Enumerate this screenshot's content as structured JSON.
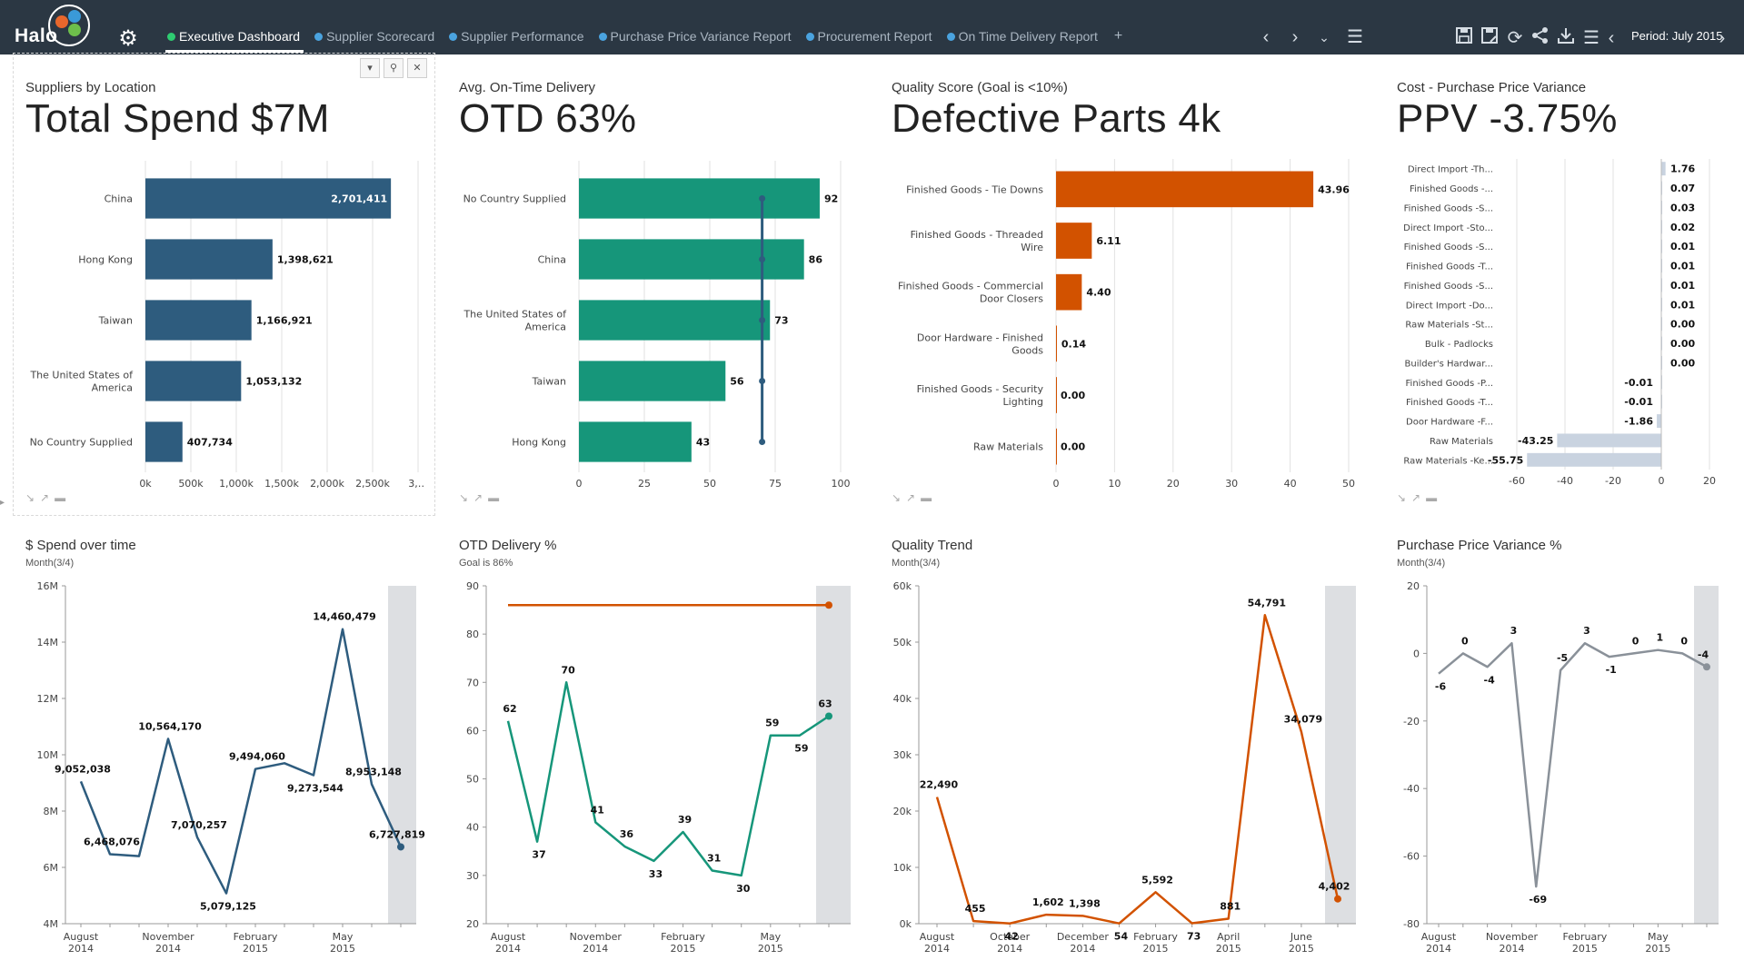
{
  "app": {
    "logo_text": "Halo"
  },
  "tabs": [
    {
      "label": "Executive Dashboard",
      "active": true
    },
    {
      "label": "Supplier Scorecard",
      "active": false
    },
    {
      "label": "Supplier Performance",
      "active": false
    },
    {
      "label": "Purchase Price Variance Report",
      "active": false
    },
    {
      "label": "Procurement Report",
      "active": false
    },
    {
      "label": "On Time Delivery Report",
      "active": false
    }
  ],
  "tab_add": "+",
  "toolbar": {
    "period_label": "Period: July 2015"
  },
  "colors": {
    "blue": "#2e5c7e",
    "teal": "#16967a",
    "orange": "#d25200",
    "gray": "#8a9199",
    "ppv_bar": "#c9d3e0"
  },
  "kpi": {
    "spend": {
      "subtitle": "Suppliers by Location",
      "value": "Total Spend $7M"
    },
    "otd": {
      "subtitle": "Avg. On-Time Delivery",
      "value": "OTD 63%"
    },
    "quality": {
      "subtitle": "Quality Score (Goal is <10%)",
      "value": "Defective Parts 4k"
    },
    "ppv": {
      "subtitle": "Cost - Purchase Price Variance",
      "value": "PPV -3.75%"
    }
  },
  "line_titles": {
    "spend": {
      "title": "$ Spend over time",
      "sub": "Month(3/4)"
    },
    "otd": {
      "title": "OTD Delivery %",
      "sub": "Goal is 86%"
    },
    "quality": {
      "title": "Quality Trend",
      "sub": "Month(3/4)"
    },
    "ppv": {
      "title": "Purchase Price Variance %",
      "sub": "Month(3/4)"
    }
  },
  "chart_data": [
    {
      "id": "spend_bar",
      "type": "bar",
      "orientation": "horizontal",
      "categories": [
        [
          "China"
        ],
        [
          "Hong Kong"
        ],
        [
          "Taiwan"
        ],
        [
          "The United States of",
          "America"
        ],
        [
          "No Country Supplied"
        ]
      ],
      "values": [
        2701411,
        1398621,
        1166921,
        1053132,
        407734
      ],
      "labels": [
        "2,701,411",
        "1,398,621",
        "1,166,921",
        "1,053,132",
        "407,734"
      ],
      "xlim": [
        0,
        3000000
      ],
      "ticks": [
        "0k",
        "500k",
        "1,000k",
        "1,500k",
        "2,000k",
        "2,500k",
        "3,…"
      ],
      "color": "#2e5c7e"
    },
    {
      "id": "otd_bar",
      "type": "bar",
      "orientation": "horizontal",
      "categories": [
        [
          "No Country Supplied"
        ],
        [
          "China"
        ],
        [
          "The United States of",
          "America"
        ],
        [
          "Taiwan"
        ],
        [
          "Hong Kong"
        ]
      ],
      "values": [
        92,
        86,
        73,
        56,
        43
      ],
      "labels": [
        "92",
        "86",
        "73",
        "56",
        "43"
      ],
      "xlim": [
        0,
        100
      ],
      "ticks": [
        "0",
        "25",
        "50",
        "75",
        "100"
      ],
      "target": 70,
      "color": "#16967a"
    },
    {
      "id": "quality_bar",
      "type": "bar",
      "orientation": "horizontal",
      "categories": [
        [
          "Finished Goods - Tie Downs"
        ],
        [
          "Finished Goods - Threaded",
          "Wire"
        ],
        [
          "Finished Goods - Commercial",
          "Door Closers"
        ],
        [
          "Door Hardware - Finished",
          "Goods"
        ],
        [
          "Finished Goods - Security",
          "Lighting"
        ],
        [
          "Raw Materials"
        ]
      ],
      "values": [
        43.96,
        6.11,
        4.4,
        0.14,
        0.0,
        0.0
      ],
      "labels": [
        "43.96",
        "6.11",
        "4.40",
        "0.14",
        "0.00",
        "0.00"
      ],
      "xlim": [
        0,
        50
      ],
      "ticks": [
        "0",
        "10",
        "20",
        "30",
        "40",
        "50"
      ],
      "color": "#d25200"
    },
    {
      "id": "ppv_bar",
      "type": "bar",
      "orientation": "horizontal",
      "categories": [
        [
          "Direct Import -Th..."
        ],
        [
          "Finished Goods -..."
        ],
        [
          "Finished Goods -S..."
        ],
        [
          "Direct Import -Sto..."
        ],
        [
          "Finished Goods -S..."
        ],
        [
          "Finished Goods -T..."
        ],
        [
          "Finished Goods -S..."
        ],
        [
          "Direct Import -Do..."
        ],
        [
          "Raw Materials -St..."
        ],
        [
          "Bulk - Padlocks"
        ],
        [
          "Builder's Hardwar..."
        ],
        [
          "Finished Goods -P..."
        ],
        [
          "Finished Goods -T..."
        ],
        [
          "Door Hardware -F..."
        ],
        [
          "Raw Materials"
        ],
        [
          "Raw Materials -Ke..."
        ]
      ],
      "values": [
        1.76,
        0.07,
        0.03,
        0.02,
        0.01,
        0.01,
        0.01,
        0.01,
        0.0,
        0.0,
        0.0,
        -0.01,
        -0.01,
        -1.86,
        -43.25,
        -55.75
      ],
      "labels": [
        "1.76",
        "0.07",
        "0.03",
        "0.02",
        "0.01",
        "0.01",
        "0.01",
        "0.01",
        "0.00",
        "0.00",
        "0.00",
        "-0.01",
        "-0.01",
        "-1.86",
        "-43.25",
        "-55.75"
      ],
      "xlim": [
        -60,
        20
      ],
      "ticks": [
        "-60",
        "-40",
        "-20",
        "0",
        "20"
      ],
      "color": "#c9d3e0"
    },
    {
      "id": "spend_line",
      "type": "line",
      "values": [
        9052038,
        6468076,
        6400000,
        10564170,
        7070257,
        5079125,
        9494060,
        9700000,
        9273544,
        14460479,
        8953148,
        6727819
      ],
      "labels": [
        "9,052,038",
        "6,468,076",
        "",
        "10,564,170",
        "7,070,257",
        "5,079,125",
        "9,494,060",
        "",
        "9,273,544",
        "14,460,479",
        "8,953,148",
        "6,727,819"
      ],
      "ylim": [
        4000000,
        16000000
      ],
      "yticks": [
        "4M",
        "6M",
        "8M",
        "10M",
        "12M",
        "14M",
        "16M"
      ],
      "xticks": [
        [
          "August",
          "2014"
        ],
        [
          "November",
          "2014"
        ],
        [
          "February",
          "2015"
        ],
        [
          "May",
          "2015"
        ]
      ],
      "xtick_index": [
        0,
        3,
        6,
        9
      ],
      "color": "#2e5c7e"
    },
    {
      "id": "otd_line",
      "type": "line",
      "values": [
        62,
        37,
        70,
        41,
        36,
        33,
        39,
        31,
        30,
        59,
        59,
        63
      ],
      "labels": [
        "62",
        "37",
        "70",
        "41",
        "36",
        "33",
        "39",
        "31",
        "30",
        "59",
        "59",
        "63"
      ],
      "ylim": [
        20,
        90
      ],
      "yticks": [
        "20",
        "30",
        "40",
        "50",
        "60",
        "70",
        "80",
        "90"
      ],
      "xticks": [
        [
          "August",
          "2014"
        ],
        [
          "November",
          "2014"
        ],
        [
          "February",
          "2015"
        ],
        [
          "May",
          "2015"
        ]
      ],
      "xtick_index": [
        0,
        3,
        6,
        9
      ],
      "goal": 86,
      "color": "#16967a"
    },
    {
      "id": "quality_line",
      "type": "line",
      "values": [
        22490,
        455,
        42,
        1602,
        1398,
        54,
        5592,
        73,
        881,
        54791,
        34079,
        4402
      ],
      "labels": [
        "22,490",
        "455",
        "42",
        "1,602",
        "1,398",
        "54",
        "5,592",
        "73",
        "881",
        "54,791",
        "34,079",
        "4,402"
      ],
      "ylim": [
        0,
        60000
      ],
      "yticks": [
        "0k",
        "10k",
        "20k",
        "30k",
        "40k",
        "50k",
        "60k"
      ],
      "xticks": [
        [
          "August",
          "2014"
        ],
        [
          "October",
          "2014"
        ],
        [
          "December",
          "2014"
        ],
        [
          "February",
          "2015"
        ],
        [
          "April",
          "2015"
        ],
        [
          "June",
          "2015"
        ]
      ],
      "xtick_index": [
        0,
        2,
        4,
        6,
        8,
        10
      ],
      "color": "#d25200"
    },
    {
      "id": "ppv_line",
      "type": "line",
      "values": [
        -6,
        0,
        -4,
        3,
        -69,
        -5,
        3,
        -1,
        0,
        1,
        0,
        -4
      ],
      "labels": [
        "-6",
        "0",
        "-4",
        "3",
        "-69",
        "-5",
        "3",
        "-1",
        "0",
        "1",
        "0",
        "-4"
      ],
      "ylim": [
        -80,
        20
      ],
      "yticks": [
        "-80",
        "-60",
        "-40",
        "-20",
        "0",
        "20"
      ],
      "xticks": [
        [
          "August",
          "2014"
        ],
        [
          "November",
          "2014"
        ],
        [
          "February",
          "2015"
        ],
        [
          "May",
          "2015"
        ]
      ],
      "xtick_index": [
        0,
        3,
        6,
        9
      ],
      "color": "#8a9199"
    }
  ]
}
